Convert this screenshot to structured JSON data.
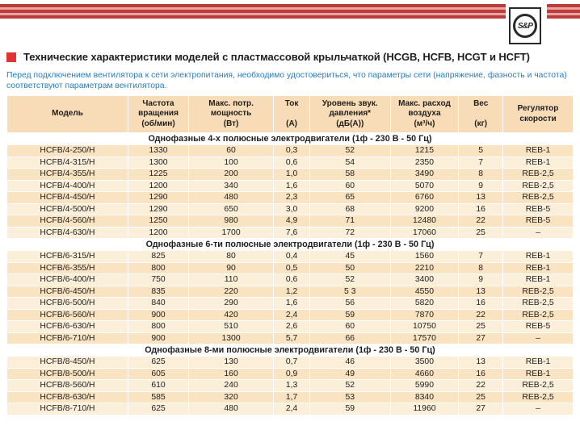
{
  "brand": {
    "logo_text": "S&P"
  },
  "header": {
    "title": "Технические характеристики моделей с пластмассовой крыльчаткой (HCGB, HCFB, HCGT и HCFT)",
    "note": "Перед подключением вентилятора к сети электропитания, необходимо удостовериться, что параметры сети (напряжение, фазность и частота) соответствуют параметрам вентилятора."
  },
  "colors": {
    "accent_red": "#e03432",
    "stripe_dark": "#bd3b39",
    "stripe_light": "#e8a4a1",
    "note_blue": "#2b7db9",
    "header_bg": "#f8dcb7",
    "row_dark": "#fae3c1",
    "row_light": "#fcefda",
    "text": "#1e1e1c"
  },
  "table": {
    "columns": [
      {
        "lines": [
          "Модель"
        ]
      },
      {
        "lines": [
          "Частота",
          "вращения",
          "(об/мин)"
        ]
      },
      {
        "lines": [
          "Макс. потр.",
          "мощность",
          "(Вт)"
        ]
      },
      {
        "lines": [
          "Ток",
          "",
          "(А)"
        ]
      },
      {
        "lines": [
          "Уровень звук.",
          "давления*",
          "(дБ(А))"
        ]
      },
      {
        "lines": [
          "Макс. расход",
          "воздуха",
          "(м³/ч)"
        ]
      },
      {
        "lines": [
          "Вес",
          "",
          "(кг)"
        ]
      },
      {
        "lines": [
          "Регулятор",
          "скорости"
        ]
      }
    ],
    "sections": [
      {
        "title": "Однофазные 4-х полюсные электродвигатели (1ф - 230 В - 50 Гц)",
        "first_shade": "dark",
        "rows": [
          [
            "HCFB/4-250/H",
            "1330",
            "60",
            "0,3",
            "52",
            "1215",
            "5",
            "REB-1"
          ],
          [
            "HCFB/4-315/H",
            "1300",
            "100",
            "0,6",
            "54",
            "2350",
            "7",
            "REB-1"
          ],
          [
            "HCFB/4-355/H",
            "1225",
            "200",
            "1,0",
            "58",
            "3490",
            "8",
            "REB-2,5"
          ],
          [
            "HCFB/4-400/H",
            "1200",
            "340",
            "1,6",
            "60",
            "5070",
            "9",
            "REB-2,5"
          ],
          [
            "HCFB/4-450/H",
            "1290",
            "480",
            "2,3",
            "65",
            "6760",
            "13",
            "REB-2,5"
          ],
          [
            "HCFB/4-500/H",
            "1290",
            "650",
            "3,0",
            "68",
            "9200",
            "16",
            "REB-5"
          ],
          [
            "HCFB/4-560/H",
            "1250",
            "980",
            "4,9",
            "71",
            "12480",
            "22",
            "REB-5"
          ],
          [
            "HCFB/4-630/H",
            "1200",
            "1700",
            "7,6",
            "72",
            "17060",
            "25",
            "–"
          ]
        ]
      },
      {
        "title": "Однофазные 6-ти полюсные электродвигатели (1ф - 230 В - 50 Гц)",
        "first_shade": "light",
        "rows": [
          [
            "HCFB/6-315/H",
            "825",
            "80",
            "0,4",
            "45",
            "1560",
            "7",
            "REB-1"
          ],
          [
            "HCFB/6-355/H",
            "800",
            "90",
            "0,5",
            "50",
            "2210",
            "8",
            "REB-1"
          ],
          [
            "HCFB/6-400/H",
            "750",
            "110",
            "0,6",
            "52",
            "3400",
            "9",
            "REB-1"
          ],
          [
            "HCFB/6-450/H",
            "835",
            "220",
            "1,2",
            "5 3",
            "4550",
            "13",
            "REB-2,5"
          ],
          [
            "HCFB/6-500/H",
            "840",
            "290",
            "1,6",
            "56",
            "5820",
            "16",
            "REB-2,5"
          ],
          [
            "HCFB/6-560/H",
            "900",
            "420",
            "2,4",
            "59",
            "7870",
            "22",
            "REB-2,5"
          ],
          [
            "HCFB/6-630/H",
            "800",
            "510",
            "2,6",
            "60",
            "10750",
            "25",
            "REB-5"
          ],
          [
            "HCFB/6-710/H",
            "900",
            "1300",
            "5,7",
            "66",
            "17570",
            "27",
            "–"
          ]
        ]
      },
      {
        "title": "Однофазные 8-ми полюсные электродвигатели (1ф - 230 В - 50 Гц)",
        "first_shade": "light",
        "rows": [
          [
            "HCFB/8-450/H",
            "625",
            "130",
            "0,7",
            "46",
            "3500",
            "13",
            "REB-1"
          ],
          [
            "HCFB/8-500/H",
            "605",
            "160",
            "0,9",
            "49",
            "4660",
            "16",
            "REB-1"
          ],
          [
            "HCFB/8-560/H",
            "610",
            "240",
            "1,3",
            "52",
            "5990",
            "22",
            "REB-2,5"
          ],
          [
            "HCFB/8-630/H",
            "585",
            "320",
            "1,7",
            "53",
            "8340",
            "25",
            "REB-2,5"
          ],
          [
            "HCFB/8-710/H",
            "625",
            "480",
            "2,4",
            "59",
            "11960",
            "27",
            "–"
          ]
        ]
      }
    ]
  }
}
